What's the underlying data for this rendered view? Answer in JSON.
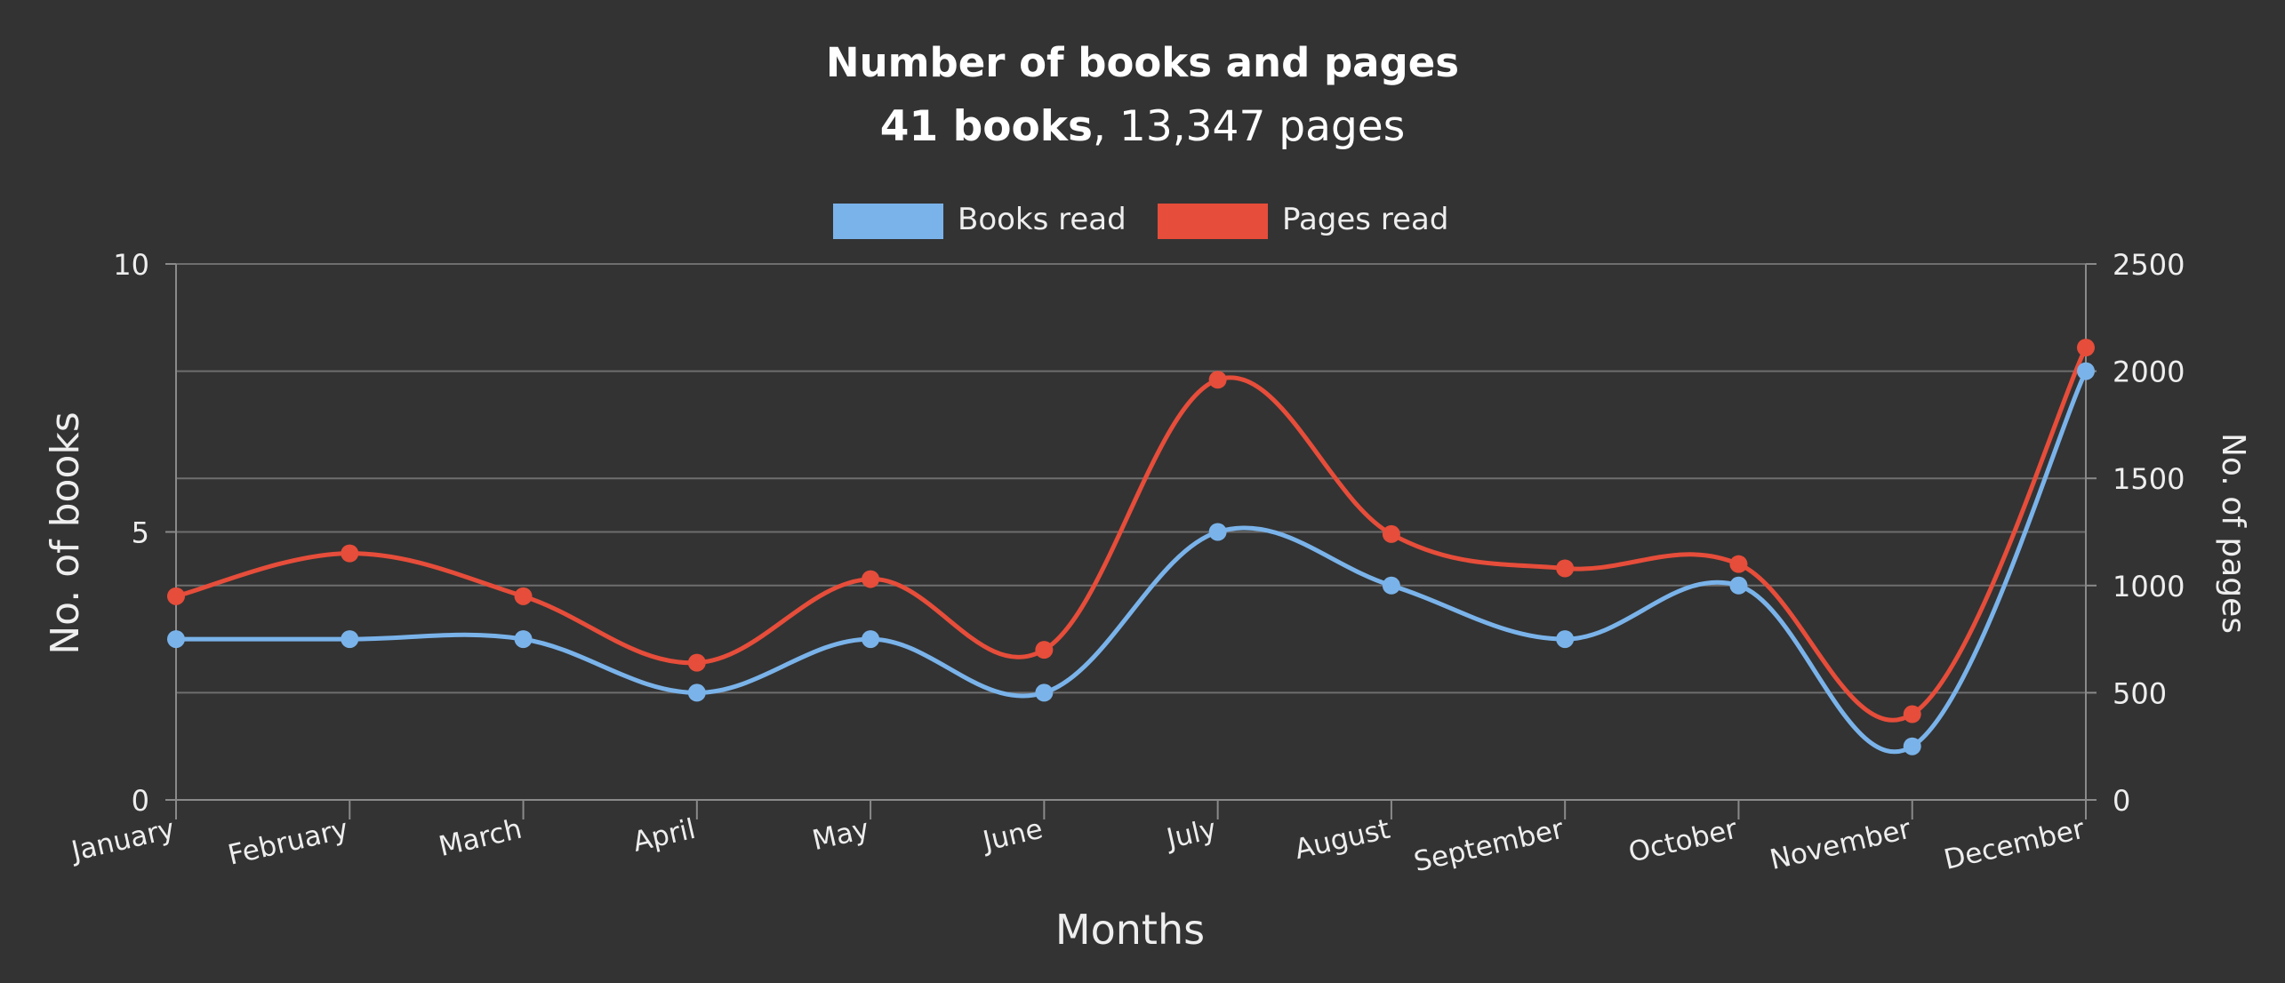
{
  "chart_data": {
    "type": "line",
    "title": "Number of books and pages",
    "subtitle_bold": "41 books",
    "subtitle_rest": ", 13,347 pages",
    "xlabel": "Months",
    "ylabel_left": "No. of books",
    "ylabel_right": "No. of pages",
    "categories": [
      "January",
      "February",
      "March",
      "April",
      "May",
      "June",
      "July",
      "August",
      "September",
      "October",
      "November",
      "December"
    ],
    "left_axis": {
      "ylim": [
        0,
        10
      ],
      "ticks": [
        "0",
        "5",
        "10"
      ]
    },
    "right_axis": {
      "ylim": [
        0,
        2500
      ],
      "ticks": [
        "0",
        "500",
        "1000",
        "1500",
        "2000",
        "2500"
      ]
    },
    "legend_position": "top-center",
    "grid": true,
    "series": [
      {
        "name": "Books read",
        "axis": "left",
        "color": "#7ab3ea",
        "values": [
          3,
          3,
          3,
          2,
          3,
          2,
          5,
          4,
          3,
          4,
          1,
          8
        ]
      },
      {
        "name": "Pages read",
        "axis": "right",
        "color": "#e64d3a",
        "values": [
          950,
          1150,
          950,
          640,
          1030,
          700,
          1960,
          1240,
          1080,
          1100,
          400,
          2110
        ]
      }
    ]
  }
}
